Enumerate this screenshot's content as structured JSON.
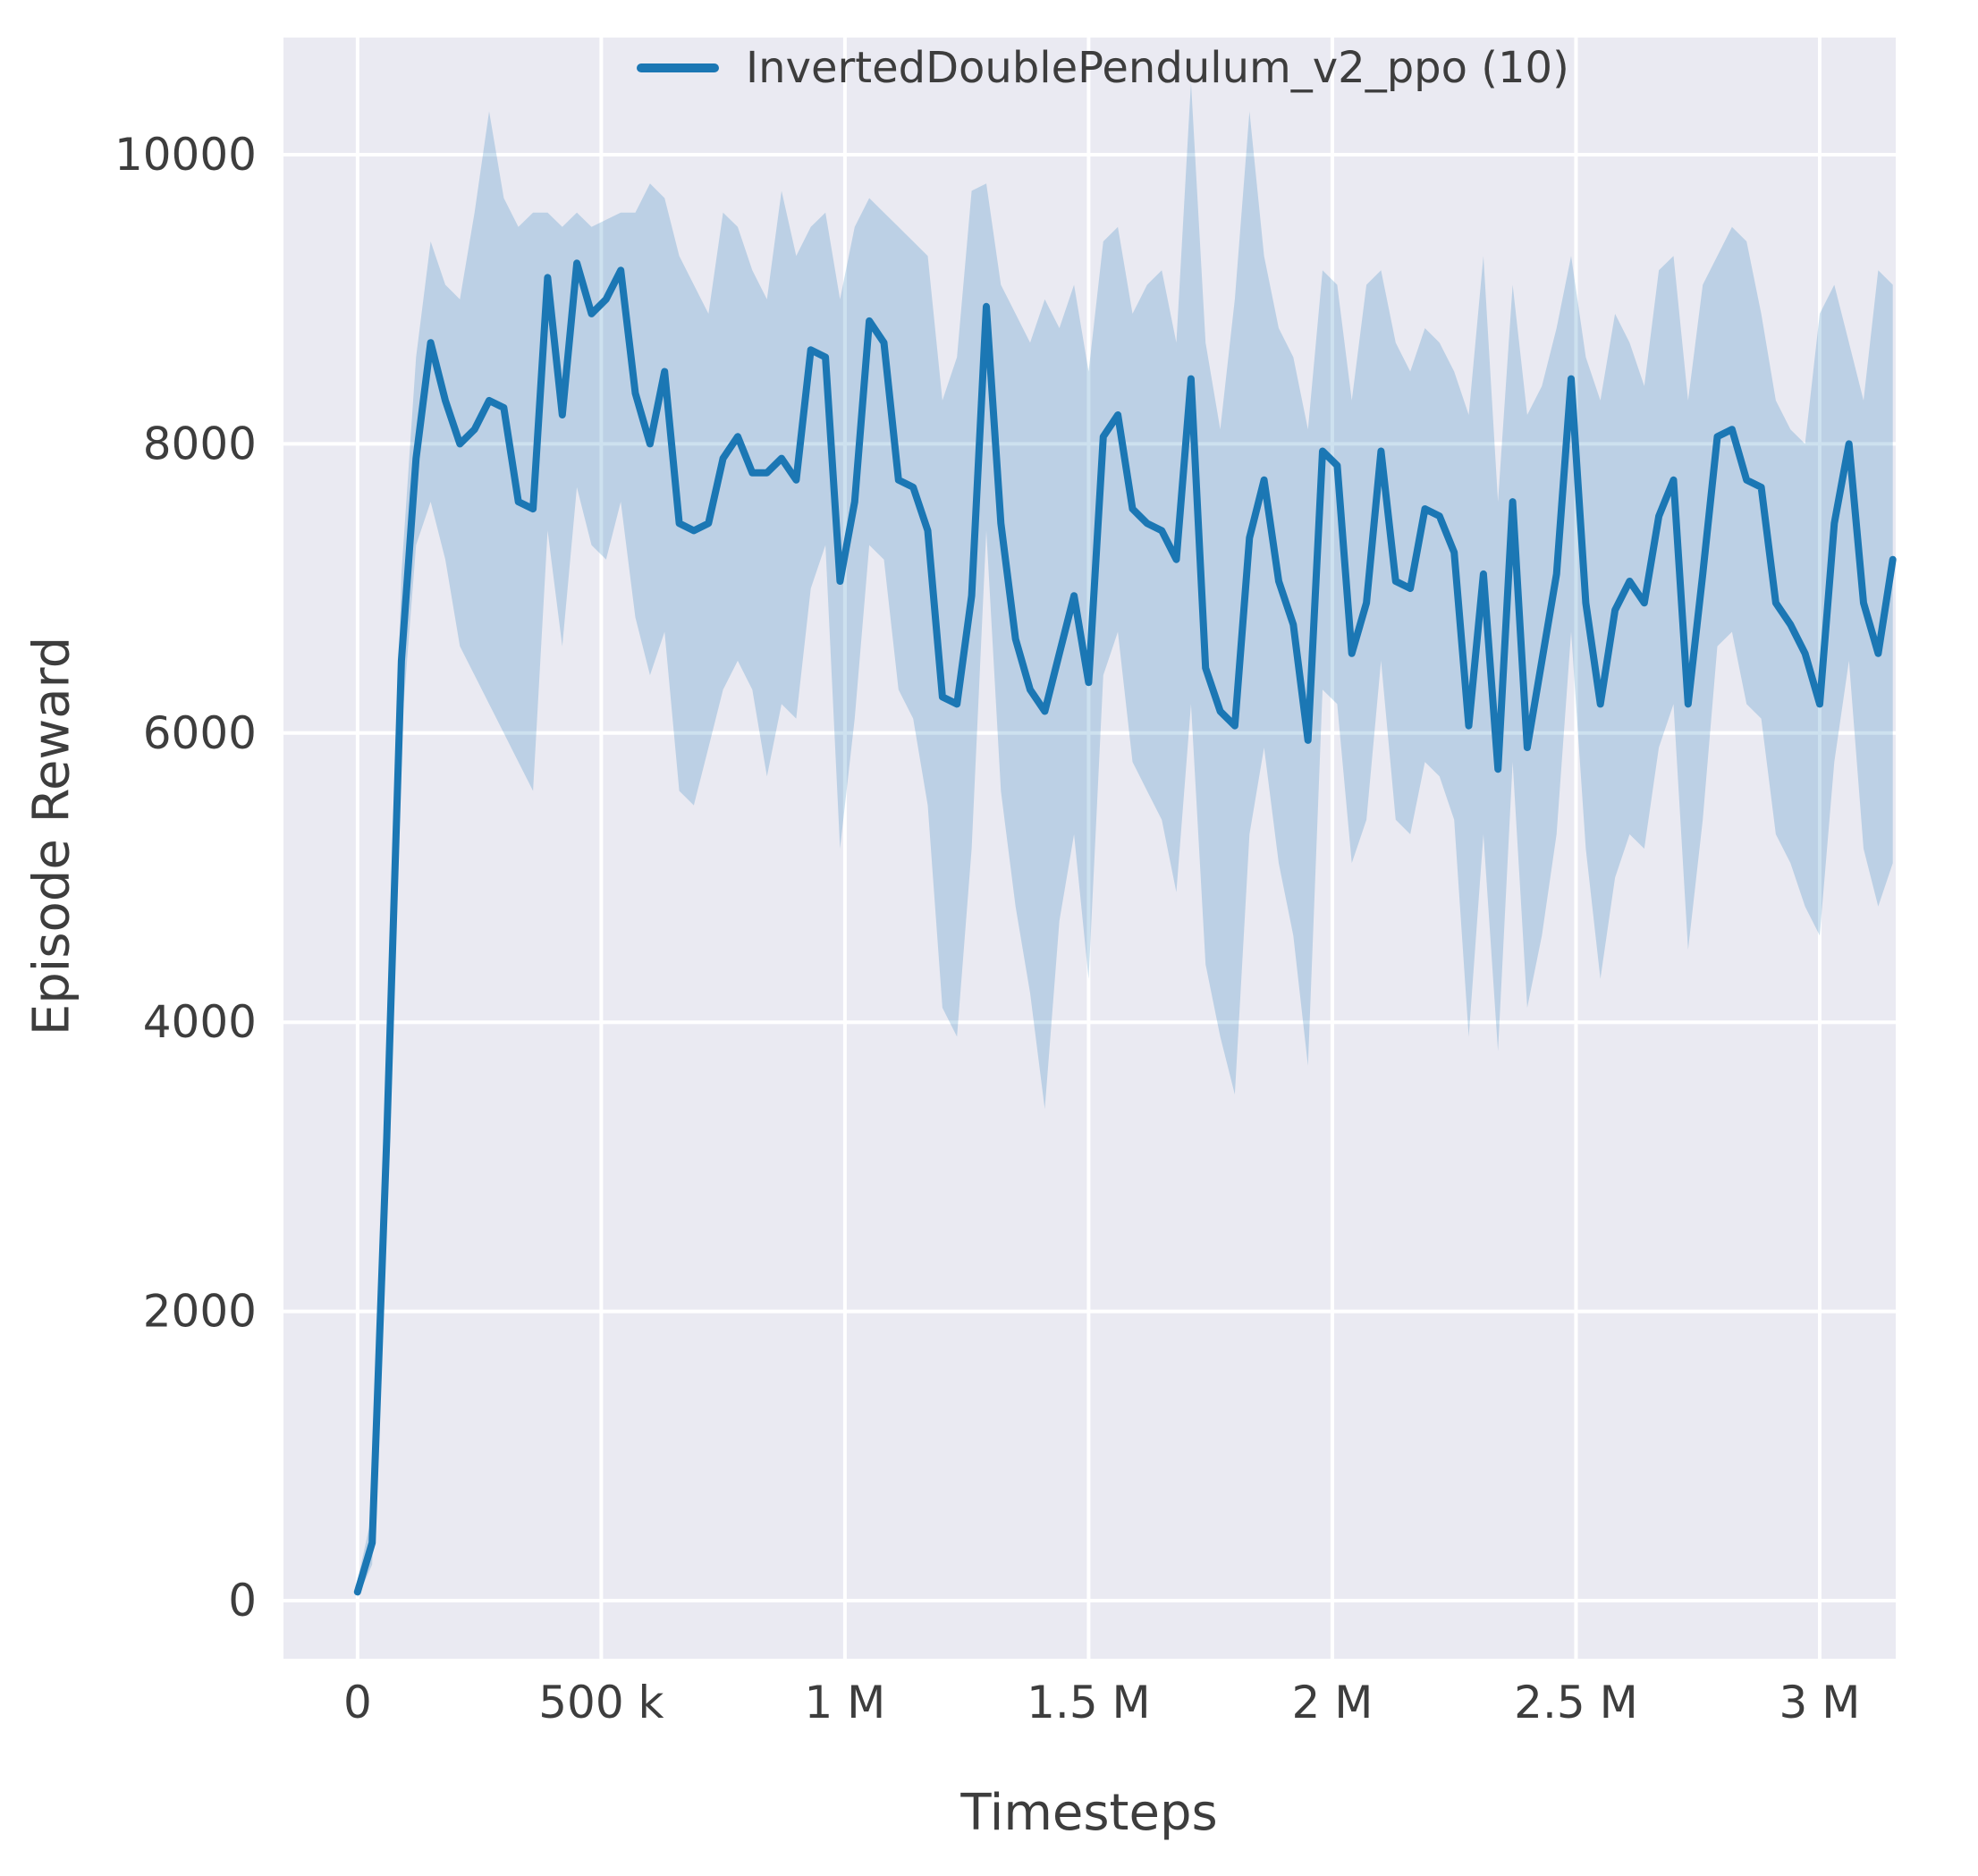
{
  "figure": {
    "xlabel": "Timesteps",
    "ylabel": "Episode Reward",
    "legend_label": "InvertedDoublePendulum_v2_ppo (10)"
  },
  "chart_data": {
    "type": "line",
    "title": "",
    "xlabel": "Timesteps",
    "ylabel": "Episode Reward",
    "legend": [
      "InvertedDoublePendulum_v2_ppo (10)"
    ],
    "legend_position": "upper right inside axes, frameless",
    "grid": true,
    "xlim": [
      -152000,
      3156000
    ],
    "ylim": [
      -402,
      10810
    ],
    "x_ticks": {
      "values": [
        0,
        500000,
        1000000,
        1500000,
        2000000,
        2500000,
        3000000
      ],
      "labels": [
        "0",
        "500 k",
        "1 M",
        "1.5 M",
        "2 M",
        "2.5 M",
        "3 M"
      ]
    },
    "y_ticks": {
      "values": [
        0,
        2000,
        4000,
        6000,
        8000,
        10000
      ],
      "labels": [
        "0",
        "2000",
        "4000",
        "6000",
        "8000",
        "10000"
      ]
    },
    "x": [
      0,
      30000,
      60000,
      90000,
      120000,
      150000,
      180000,
      210000,
      240000,
      270000,
      300000,
      330000,
      360000,
      390000,
      420000,
      450000,
      480000,
      510000,
      540000,
      570000,
      600000,
      630000,
      660000,
      690000,
      720000,
      750000,
      780000,
      810000,
      840000,
      870000,
      900000,
      930000,
      960000,
      990000,
      1020000,
      1050000,
      1080000,
      1110000,
      1140000,
      1170000,
      1200000,
      1230000,
      1260000,
      1290000,
      1320000,
      1350000,
      1380000,
      1410000,
      1440000,
      1470000,
      1500000,
      1530000,
      1560000,
      1590000,
      1620000,
      1650000,
      1680000,
      1710000,
      1740000,
      1770000,
      1800000,
      1830000,
      1860000,
      1890000,
      1920000,
      1950000,
      1980000,
      2010000,
      2040000,
      2070000,
      2100000,
      2130000,
      2160000,
      2190000,
      2220000,
      2250000,
      2280000,
      2310000,
      2340000,
      2370000,
      2400000,
      2430000,
      2460000,
      2490000,
      2520000,
      2550000,
      2580000,
      2610000,
      2640000,
      2670000,
      2700000,
      2730000,
      2760000,
      2790000,
      2820000,
      2850000,
      2880000,
      2910000,
      2940000,
      2970000,
      3000000,
      3030000,
      3060000,
      3090000,
      3120000,
      3150000
    ],
    "series": [
      {
        "name": "InvertedDoublePendulum_v2_ppo (10)",
        "mean": [
          60,
          400,
          3200,
          6500,
          7900,
          8700,
          8300,
          8000,
          8100,
          8300,
          8250,
          7600,
          7550,
          9150,
          8200,
          9250,
          8900,
          9000,
          9200,
          8350,
          8000,
          8500,
          7450,
          7400,
          7450,
          7900,
          8050,
          7800,
          7800,
          7900,
          7750,
          8650,
          8600,
          7050,
          7600,
          8850,
          8700,
          7750,
          7700,
          7400,
          6250,
          6200,
          6950,
          8950,
          7450,
          6650,
          6300,
          6150,
          6550,
          6950,
          6350,
          8050,
          8200,
          7550,
          7450,
          7400,
          7200,
          8450,
          6450,
          6150,
          6050,
          7350,
          7750,
          7050,
          6750,
          5950,
          7950,
          7850,
          6550,
          6900,
          7950,
          7050,
          7000,
          7550,
          7500,
          7250,
          6050,
          7100,
          5750,
          7600,
          5900,
          6500,
          7100,
          8450,
          6900,
          6200,
          6850,
          7050,
          6900,
          7500,
          7750,
          6200,
          7100,
          8050,
          8100,
          7750,
          7700,
          6900,
          6750,
          6550,
          6200,
          7450,
          8000,
          6900,
          6550,
          7200
        ],
        "band_upper": [
          140,
          600,
          3700,
          7100,
          8600,
          9400,
          9100,
          9000,
          9600,
          10300,
          9700,
          9500,
          9600,
          9600,
          9500,
          9600,
          9500,
          9550,
          9600,
          9600,
          9800,
          9700,
          9300,
          9100,
          8900,
          9600,
          9500,
          9200,
          9000,
          9750,
          9300,
          9500,
          9600,
          9000,
          9500,
          9700,
          9600,
          9500,
          9400,
          9300,
          8300,
          8600,
          9750,
          9800,
          9100,
          8900,
          8700,
          9000,
          8800,
          9100,
          8500,
          9400,
          9500,
          8900,
          9100,
          9200,
          8700,
          10500,
          8700,
          8100,
          9000,
          10300,
          9300,
          8800,
          8600,
          8100,
          9200,
          9100,
          8300,
          9100,
          9200,
          8700,
          8500,
          8800,
          8700,
          8500,
          8200,
          9300,
          7600,
          9100,
          8200,
          8400,
          8800,
          9300,
          8600,
          8300,
          8900,
          8700,
          8400,
          9200,
          9300,
          8300,
          9100,
          9300,
          9500,
          9400,
          8900,
          8300,
          8100,
          8000,
          8900,
          9100,
          8700,
          8300,
          9200,
          9100
        ],
        "band_lower": [
          20,
          250,
          2800,
          6000,
          7300,
          7600,
          7200,
          6600,
          6400,
          6200,
          6000,
          5800,
          5600,
          7400,
          6600,
          7700,
          7300,
          7200,
          7600,
          6800,
          6400,
          6700,
          5600,
          5500,
          5900,
          6300,
          6500,
          6300,
          5700,
          6200,
          6100,
          7000,
          7300,
          5200,
          6100,
          7300,
          7200,
          6300,
          6100,
          5500,
          4100,
          3900,
          5200,
          7400,
          5600,
          4800,
          4200,
          3400,
          4700,
          5300,
          4300,
          6400,
          6700,
          5800,
          5600,
          5400,
          4900,
          6200,
          4400,
          3900,
          3500,
          5300,
          5900,
          5100,
          4600,
          3700,
          6300,
          6200,
          5100,
          5400,
          6500,
          5400,
          5300,
          5800,
          5700,
          5400,
          3900,
          5300,
          3800,
          5800,
          4100,
          4600,
          5300,
          6700,
          5200,
          4300,
          5000,
          5300,
          5200,
          5900,
          6200,
          4500,
          5400,
          6600,
          6700,
          6200,
          6100,
          5300,
          5100,
          4800,
          4600,
          5800,
          6500,
          5200,
          4800,
          5100
        ]
      }
    ],
    "style": {
      "line_color": "#1b77b4",
      "band_color": "#1b77b4",
      "band_opacity": 0.22,
      "axes_bg": "#eaeaf2",
      "grid_color": "#ffffff",
      "text_color": "#3d3d3d"
    }
  }
}
